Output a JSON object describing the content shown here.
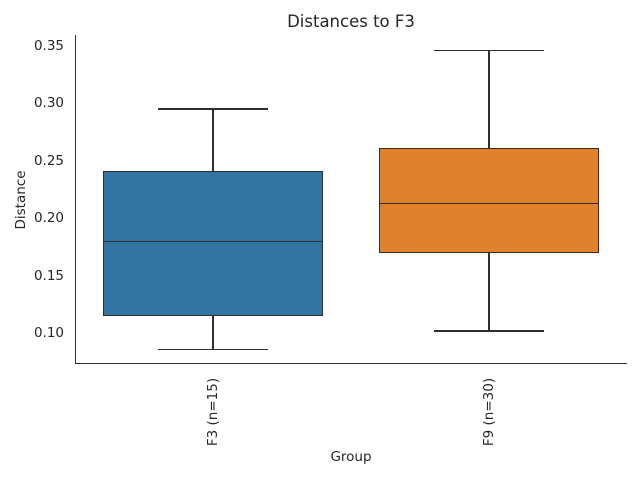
{
  "chart_data": {
    "type": "box",
    "title": "Distances to F3",
    "xlabel": "Group",
    "ylabel": "Distance",
    "ylim": [
      0.073,
      0.359
    ],
    "yticks": [
      "0.10",
      "0.15",
      "0.20",
      "0.25",
      "0.30",
      "0.35"
    ],
    "ytick_values": [
      0.1,
      0.15,
      0.2,
      0.25,
      0.3,
      0.35
    ],
    "categories": [
      "F3 (n=15)",
      "F9 (n=30)"
    ],
    "series": [
      {
        "name": "F3 (n=15)",
        "whisker_low": 0.086,
        "q1": 0.115,
        "median": 0.18,
        "q3": 0.241,
        "whisker_high": 0.295,
        "fill_color": "#3274a1"
      },
      {
        "name": "F9 (n=30)",
        "whisker_low": 0.102,
        "q1": 0.17,
        "median": 0.213,
        "q3": 0.261,
        "whisker_high": 0.346,
        "fill_color": "#e1812c"
      }
    ],
    "edge_color": "#2e2e2e",
    "text_color": "#262626",
    "background": "#ffffff",
    "grid": false,
    "legend": false
  }
}
